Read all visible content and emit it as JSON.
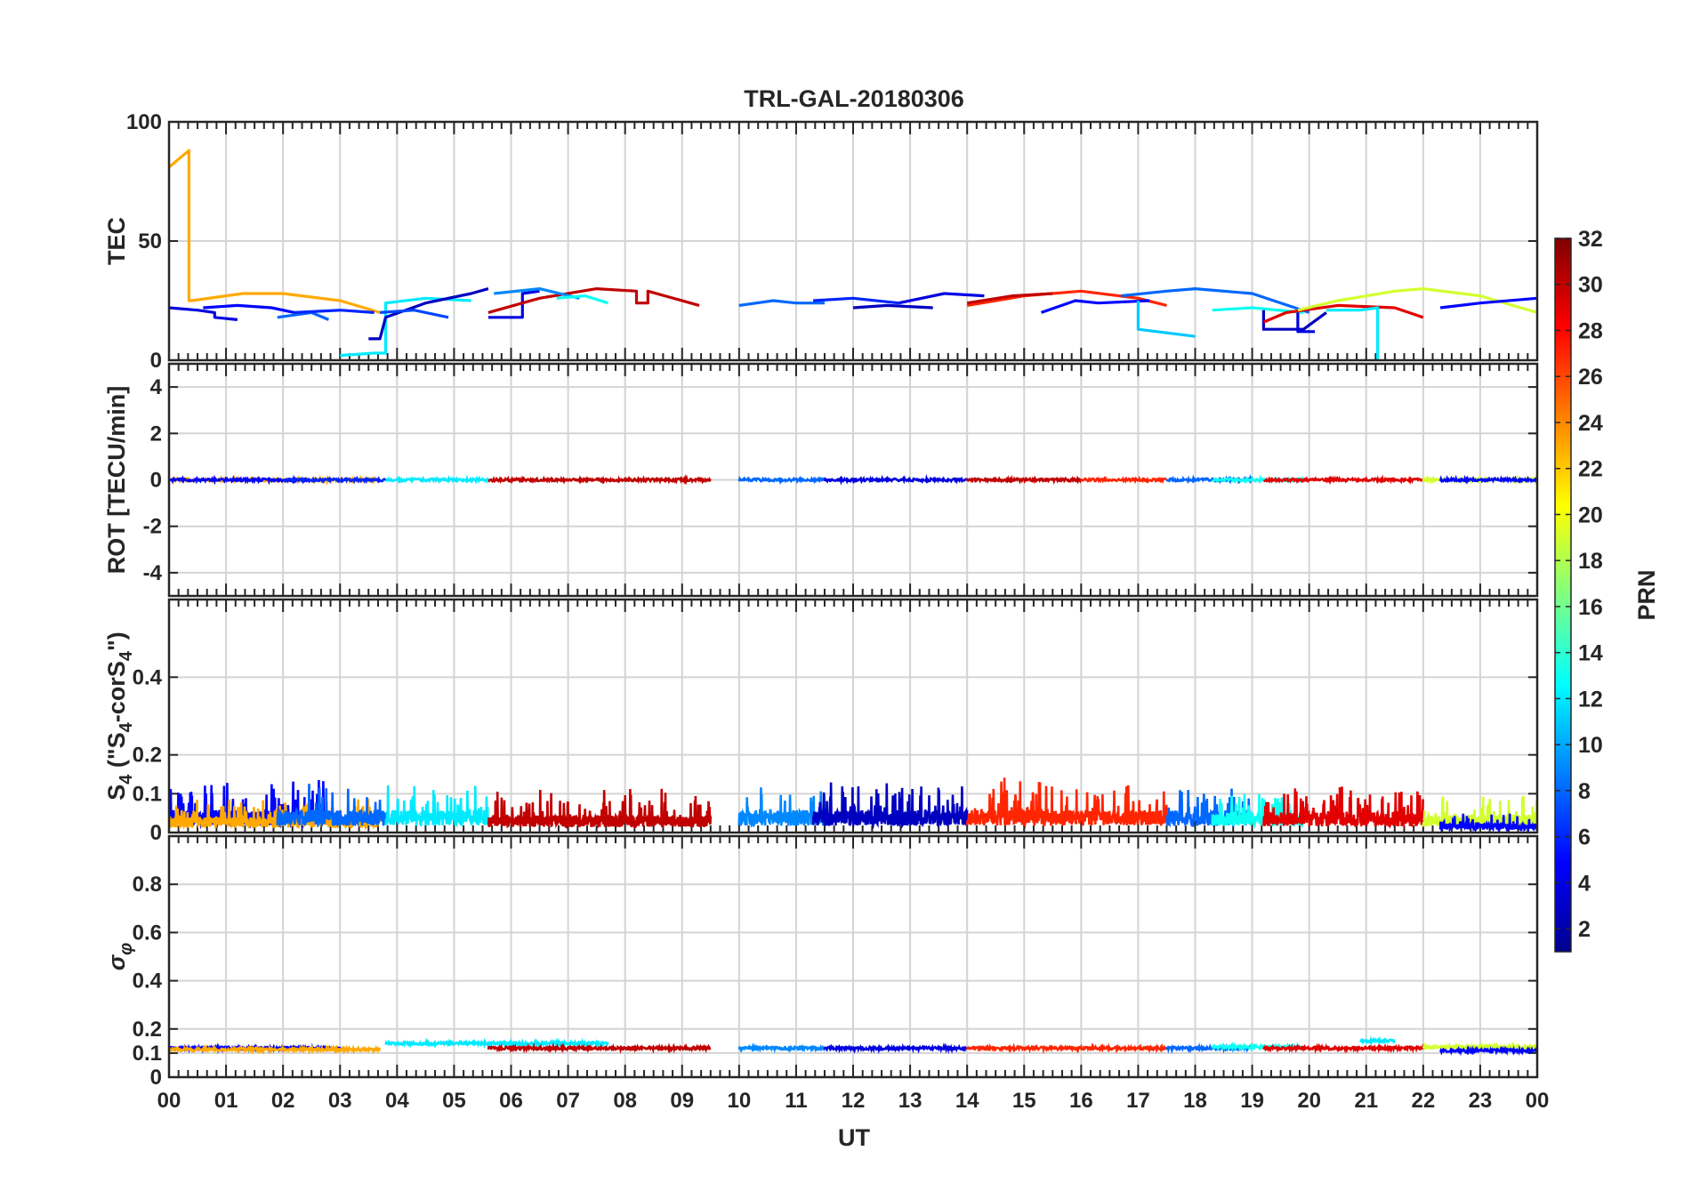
{
  "chart_data": {
    "type": "line",
    "title": "TRL-GAL-20180306",
    "xlabel": "UT",
    "xlim": [
      0,
      24
    ],
    "x_ticks": [
      "00",
      "01",
      "02",
      "03",
      "04",
      "05",
      "06",
      "07",
      "08",
      "09",
      "10",
      "11",
      "12",
      "13",
      "14",
      "15",
      "16",
      "17",
      "18",
      "19",
      "20",
      "21",
      "22",
      "23",
      "00"
    ],
    "colorbar": {
      "label": "PRN",
      "range": [
        1,
        32
      ],
      "ticks": [
        "32",
        "30",
        "28",
        "26",
        "24",
        "22",
        "20",
        "18",
        "16",
        "14",
        "12",
        "10",
        "8",
        "6",
        "4",
        "2"
      ]
    },
    "panels": [
      {
        "id": "tec",
        "ylabel": "TEC",
        "ylim": [
          0,
          100
        ],
        "y_ticks": [
          0,
          50,
          100
        ],
        "y_tick_labels": [
          "0",
          "50",
          "100"
        ],
        "series": [
          {
            "prn": 23,
            "x": [
              0.0,
              0.35,
              0.35,
              0.4,
              1.3,
              2.0,
              3.0,
              3.7
            ],
            "y": [
              81,
              88,
              25,
              25,
              28,
              28,
              25,
              20
            ]
          },
          {
            "prn": 4,
            "x": [
              0.0,
              0.5,
              0.8,
              0.8,
              1.2
            ],
            "y": [
              22,
              21,
              20,
              18,
              17
            ]
          },
          {
            "prn": 5,
            "x": [
              0.6,
              1.2,
              1.8,
              2.2
            ],
            "y": [
              22,
              23,
              22,
              20
            ]
          },
          {
            "prn": 8,
            "x": [
              1.9,
              2.5,
              2.8
            ],
            "y": [
              18,
              20,
              17
            ]
          },
          {
            "prn": 6,
            "x": [
              2.2,
              3.0,
              3.6
            ],
            "y": [
              20,
              21,
              20
            ]
          },
          {
            "prn": 12,
            "x": [
              3.0,
              3.6,
              3.8,
              3.8,
              4.5,
              5.3
            ],
            "y": [
              2,
              3,
              3,
              24,
              26,
              25
            ]
          },
          {
            "prn": 3,
            "x": [
              3.5,
              3.7,
              3.8,
              4.5,
              5.3,
              5.6
            ],
            "y": [
              9,
              9,
              18,
              24,
              28,
              30
            ]
          },
          {
            "prn": 7,
            "x": [
              3.7,
              4.3,
              4.9
            ],
            "y": [
              20,
              21,
              18
            ]
          },
          {
            "prn": 4,
            "x": [
              5.6,
              6.2,
              6.2,
              6.5
            ],
            "y": [
              18,
              18,
              28,
              29
            ]
          },
          {
            "prn": 30,
            "x": [
              5.6,
              6.5,
              7.5,
              8.2,
              8.2,
              8.4,
              8.4,
              9.3
            ],
            "y": [
              20,
              26,
              30,
              29,
              24,
              24,
              29,
              23
            ]
          },
          {
            "prn": 9,
            "x": [
              5.7,
              6.5,
              7.2
            ],
            "y": [
              28,
              30,
              26
            ]
          },
          {
            "prn": 13,
            "x": [
              6.8,
              7.3,
              7.7
            ],
            "y": [
              26,
              27,
              24
            ]
          },
          {
            "prn": 8,
            "x": [
              10.0,
              10.6,
              11.0,
              11.5
            ],
            "y": [
              23,
              25,
              24,
              24
            ]
          },
          {
            "prn": 6,
            "x": [
              11.3,
              12.0,
              12.8
            ],
            "y": [
              25,
              26,
              24
            ]
          },
          {
            "prn": 3,
            "x": [
              12.0,
              12.6,
              13.4
            ],
            "y": [
              22,
              23,
              22
            ]
          },
          {
            "prn": 4,
            "x": [
              12.8,
              13.6,
              14.3
            ],
            "y": [
              24,
              28,
              27
            ]
          },
          {
            "prn": 27,
            "x": [
              14.0,
              15.0,
              16.0,
              17.0,
              17.5
            ],
            "y": [
              23,
              27,
              29,
              26,
              23
            ]
          },
          {
            "prn": 30,
            "x": [
              14.0,
              14.8,
              15.5
            ],
            "y": [
              24,
              27,
              28
            ]
          },
          {
            "prn": 5,
            "x": [
              15.3,
              15.9,
              16.3,
              17.2
            ],
            "y": [
              20,
              25,
              24,
              25
            ]
          },
          {
            "prn": 8,
            "x": [
              16.7,
              17.5,
              18.0,
              19.0,
              20.0
            ],
            "y": [
              27,
              29,
              30,
              28,
              20
            ]
          },
          {
            "prn": 11,
            "x": [
              17.0,
              17.0,
              18.0
            ],
            "y": [
              25,
              13,
              10
            ]
          },
          {
            "prn": 13,
            "x": [
              18.3,
              19.0,
              19.9
            ],
            "y": [
              21,
              22,
              20
            ]
          },
          {
            "prn": 3,
            "x": [
              19.2,
              19.2,
              19.9,
              20.3
            ],
            "y": [
              21,
              13,
              13,
              20
            ]
          },
          {
            "prn": 4,
            "x": [
              19.8,
              19.8,
              20.1
            ],
            "y": [
              20,
              12,
              12
            ]
          },
          {
            "prn": 29,
            "x": [
              19.2,
              19.6,
              20.5,
              21.5,
              22.0
            ],
            "y": [
              16,
              20,
              23,
              22,
              18
            ]
          },
          {
            "prn": 19,
            "x": [
              19.8,
              20.5,
              21.5,
              22.0,
              23.0,
              24.0
            ],
            "y": [
              21,
              25,
              29,
              30,
              27,
              20
            ]
          },
          {
            "prn": 12,
            "x": [
              20.3,
              20.9,
              21.2,
              21.2
            ],
            "y": [
              21,
              21,
              22,
              0
            ]
          },
          {
            "prn": 5,
            "x": [
              22.3,
              23.0,
              24.0
            ],
            "y": [
              22,
              24,
              26
            ]
          }
        ]
      },
      {
        "id": "rot",
        "ylabel": "ROT [TECU/min]",
        "ylim": [
          -5,
          5
        ],
        "y_ticks": [
          -4,
          -2,
          0,
          2,
          4
        ],
        "y_tick_labels": [
          "-4",
          "-2",
          "0",
          "2",
          "4"
        ],
        "segments": [
          {
            "prn": 23,
            "x0": 0.0,
            "x1": 3.7
          },
          {
            "prn": 5,
            "x0": 0.0,
            "x1": 2.5
          },
          {
            "prn": 6,
            "x0": 2.0,
            "x1": 3.8
          },
          {
            "prn": 12,
            "x0": 3.8,
            "x1": 5.6
          },
          {
            "prn": 30,
            "x0": 5.6,
            "x1": 9.5
          },
          {
            "prn": 8,
            "x0": 10.0,
            "x1": 11.5
          },
          {
            "prn": 4,
            "x0": 11.5,
            "x1": 14.0
          },
          {
            "prn": 30,
            "x0": 14.0,
            "x1": 16.0
          },
          {
            "prn": 27,
            "x0": 16.0,
            "x1": 17.5
          },
          {
            "prn": 8,
            "x0": 17.5,
            "x1": 19.0
          },
          {
            "prn": 13,
            "x0": 18.3,
            "x1": 19.9
          },
          {
            "prn": 29,
            "x0": 19.2,
            "x1": 22.0
          },
          {
            "prn": 19,
            "x0": 22.0,
            "x1": 24.0
          },
          {
            "prn": 5,
            "x0": 22.3,
            "x1": 24.0
          }
        ]
      },
      {
        "id": "s4",
        "ylabel": "S",
        "ylabel_sub": "4",
        "ylabel_quote_main": " (\"S",
        "ylabel_quote_main2": "-corS",
        "ylabel_quote_end": "\")",
        "ylim": [
          0,
          0.6
        ],
        "y_ticks": [
          0,
          0.1,
          0.2,
          0.4
        ],
        "y_tick_labels": [
          "0",
          "0.1",
          "0.2",
          "0.4"
        ],
        "segments": [
          {
            "prn": 5,
            "x0": 0.0,
            "x1": 3.0,
            "base": 0.05,
            "amp": 0.09
          },
          {
            "prn": 23,
            "x0": 0.0,
            "x1": 3.7,
            "base": 0.035,
            "amp": 0.05
          },
          {
            "prn": 8,
            "x0": 1.9,
            "x1": 3.8,
            "base": 0.05,
            "amp": 0.08
          },
          {
            "prn": 12,
            "x0": 3.8,
            "x1": 5.6,
            "base": 0.05,
            "amp": 0.07
          },
          {
            "prn": 30,
            "x0": 5.6,
            "x1": 9.5,
            "base": 0.04,
            "amp": 0.07
          },
          {
            "prn": 9,
            "x0": 10.0,
            "x1": 11.5,
            "base": 0.05,
            "amp": 0.08
          },
          {
            "prn": 3,
            "x0": 11.3,
            "x1": 14.0,
            "base": 0.05,
            "amp": 0.08
          },
          {
            "prn": 27,
            "x0": 14.0,
            "x1": 17.5,
            "base": 0.05,
            "amp": 0.09
          },
          {
            "prn": 8,
            "x0": 17.5,
            "x1": 19.0,
            "base": 0.05,
            "amp": 0.07
          },
          {
            "prn": 13,
            "x0": 18.3,
            "x1": 19.9,
            "base": 0.045,
            "amp": 0.06
          },
          {
            "prn": 29,
            "x0": 19.2,
            "x1": 22.0,
            "base": 0.045,
            "amp": 0.08
          },
          {
            "prn": 19,
            "x0": 22.0,
            "x1": 24.0,
            "base": 0.04,
            "amp": 0.07
          },
          {
            "prn": 5,
            "x0": 22.3,
            "x1": 24.0,
            "base": 0.02,
            "amp": 0.03
          }
        ]
      },
      {
        "id": "sigma",
        "ylabel": "σ",
        "ylabel_sub": "φ",
        "ylim": [
          0,
          1
        ],
        "y_ticks": [
          0,
          0.1,
          0.2,
          0.4,
          0.6,
          0.8
        ],
        "y_tick_labels": [
          "0",
          "0.1",
          "0.2",
          "0.4",
          "0.6",
          "0.8"
        ],
        "segments": [
          {
            "prn": 5,
            "x0": 0.0,
            "x1": 3.0,
            "base": 0.12
          },
          {
            "prn": 23,
            "x0": 0.0,
            "x1": 3.7,
            "base": 0.115
          },
          {
            "prn": 12,
            "x0": 3.8,
            "x1": 7.7,
            "base": 0.14
          },
          {
            "prn": 30,
            "x0": 5.6,
            "x1": 9.5,
            "base": 0.12
          },
          {
            "prn": 9,
            "x0": 10.0,
            "x1": 11.5,
            "base": 0.12
          },
          {
            "prn": 4,
            "x0": 11.5,
            "x1": 14.0,
            "base": 0.12
          },
          {
            "prn": 27,
            "x0": 14.0,
            "x1": 17.5,
            "base": 0.12
          },
          {
            "prn": 8,
            "x0": 17.5,
            "x1": 19.0,
            "base": 0.12
          },
          {
            "prn": 13,
            "x0": 18.3,
            "x1": 19.9,
            "base": 0.125
          },
          {
            "prn": 29,
            "x0": 19.2,
            "x1": 22.0,
            "base": 0.12
          },
          {
            "prn": 12,
            "x0": 20.9,
            "x1": 21.5,
            "base": 0.15
          },
          {
            "prn": 19,
            "x0": 22.0,
            "x1": 24.0,
            "base": 0.125
          },
          {
            "prn": 5,
            "x0": 22.3,
            "x1": 24.0,
            "base": 0.11
          }
        ]
      }
    ]
  }
}
